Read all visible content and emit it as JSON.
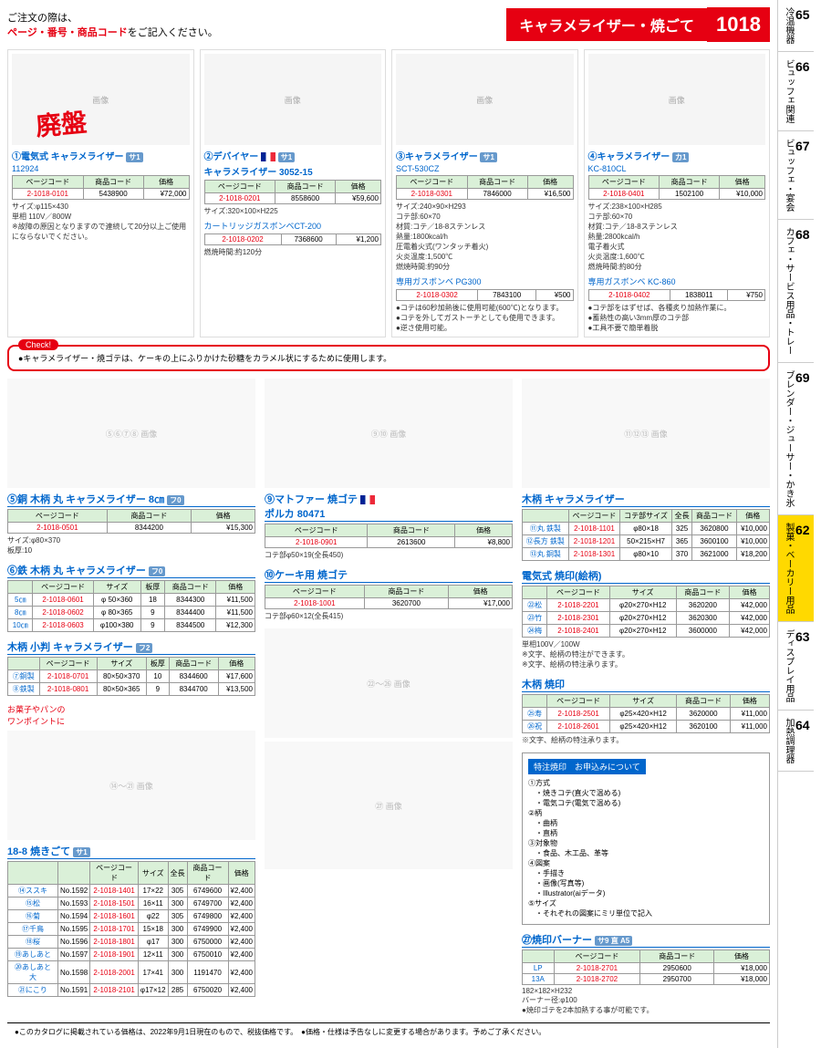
{
  "header": {
    "instruction1": "ご注文の際は、",
    "instruction2": "ページ・番号・商品コード",
    "instruction3": "をご記入ください。",
    "category": "キャラメライザー・焼ごて",
    "page": "1018"
  },
  "products_top": [
    {
      "num": "①",
      "name": "電気式 キャラメライザー",
      "model": "112924",
      "page_code": "2-1018-0101",
      "item_code": "5438900",
      "price": "¥72,000",
      "spec": "サイズ:φ115×430\n単相 110V／800W\n※故障の原因となりますので連続して20分以上ご使用にならないでください。",
      "discontinued": "廃盤",
      "badge": "サ1"
    },
    {
      "num": "②",
      "name": "デバイヤー",
      "name2": "キャラメライザー 3052-15",
      "page_code": "2-1018-0201",
      "item_code": "8558600",
      "price": "¥59,600",
      "spec": "サイズ:320×100×H225",
      "extra_name": "カートリッジガスボンベCT-200",
      "extra_page_code": "2-1018-0202",
      "extra_item_code": "7368600",
      "extra_price": "¥1,200",
      "extra_spec": "燃焼時間:約120分",
      "flag": true,
      "badge": "サ1"
    },
    {
      "num": "③",
      "name": "キャラメライザー",
      "model": "SCT-530CZ",
      "page_code": "2-1018-0301",
      "item_code": "7846000",
      "price": "¥16,500",
      "spec": "サイズ:240×90×H293\nコテ部:60×70\n材質:コテ／18-8ステンレス\n熱量:1800kcal/h\n圧電着火式(ワンタッチ着火)\n火炎温度:1,500℃\n燃焼時間:約90分",
      "extra_name": "専用ガスボンベ PG300",
      "extra_page_code": "2-1018-0302",
      "extra_item_code": "7843100",
      "extra_price": "¥500",
      "extra_spec": "●コテは60秒加熱後に使用可能(600℃)となります。\n●コテを外してガストーチとしても使用できます。\n●逆さ使用可能。",
      "badge": "サ1"
    },
    {
      "num": "④",
      "name": "キャラメライザー",
      "model": "KC-810CL",
      "page_code": "2-1018-0401",
      "item_code": "1502100",
      "price": "¥10,000",
      "spec": "サイズ:238×100×H285\nコテ部:60×70\n材質:コテ／18-8ステンレス\n熱量:2800kcal/h\n電子着火式\n火炎温度:1,600℃\n燃焼時間:約80分",
      "extra_name": "専用ガスボンベ KC-860",
      "extra_page_code": "2-1018-0402",
      "extra_item_code": "1838011",
      "extra_price": "¥750",
      "extra_spec": "●コテ部をはずせば、各種炙り加熱作業に。\n●蓄熱性の高い3mm厚のコテ部\n●工具不要で簡単着脱",
      "badge": "カ1"
    }
  ],
  "check_note": "●キャラメライザー・焼ゴテは、ケーキの上にふりかけた砂糖をカラメル状にするために使用します。",
  "check_label": "Check!",
  "section5": {
    "title": "⑤銅 木柄 丸 キャラメライザー 8㎝",
    "page_code": "2-1018-0501",
    "item_code": "8344200",
    "price": "¥15,300",
    "spec": "サイズ:φ80×370\n板厚:10",
    "badge": "フ0"
  },
  "section6": {
    "title": "⑥鉄 木柄 丸 キャラメライザー",
    "headers": [
      "",
      "ページコード",
      "サイズ",
      "板厚",
      "商品コード",
      "価格"
    ],
    "rows": [
      [
        "5㎝",
        "2-1018-0601",
        "φ 50×360",
        "18",
        "8344300",
        "¥11,500"
      ],
      [
        "8㎝",
        "2-1018-0602",
        "φ 80×365",
        "9",
        "8344400",
        "¥11,500"
      ],
      [
        "10㎝",
        "2-1018-0603",
        "φ100×380",
        "9",
        "8344500",
        "¥12,300"
      ]
    ],
    "badge": "フ0"
  },
  "section78": {
    "title": "木柄 小判 キャラメライザー",
    "headers": [
      "",
      "ページコード",
      "サイズ",
      "板厚",
      "商品コード",
      "価格"
    ],
    "rows": [
      [
        "⑦銅製",
        "2-1018-0701",
        "80×50×370",
        "10",
        "8344600",
        "¥17,600"
      ],
      [
        "⑧鉄製",
        "2-1018-0801",
        "80×50×365",
        "9",
        "8344700",
        "¥13,500"
      ]
    ],
    "badge": "フ2"
  },
  "section9": {
    "title": "⑨マトファー 焼ゴテ",
    "subtitle": "ポルカ 80471",
    "page_code": "2-1018-0901",
    "item_code": "2613600",
    "price": "¥8,800",
    "spec": "コテ部φ50×19(全長450)",
    "flag": true
  },
  "section10": {
    "title": "⑩ケーキ用 焼ゴテ",
    "page_code": "2-1018-1001",
    "item_code": "3620700",
    "price": "¥17,000",
    "spec": "コテ部φ60×12(全長415)"
  },
  "section_wood": {
    "title": "木柄 キャラメライザー",
    "headers": [
      "",
      "ページコード",
      "コテ部サイズ",
      "全長",
      "商品コード",
      "価格"
    ],
    "rows": [
      [
        "⑪丸 鉄製",
        "2-1018-1101",
        "φ80×18",
        "325",
        "3620800",
        "¥10,000"
      ],
      [
        "⑫長方 鉄製",
        "2-1018-1201",
        "50×215×H7",
        "365",
        "3600100",
        "¥10,000"
      ],
      [
        "⑬丸 銅製",
        "2-1018-1301",
        "φ80×10",
        "370",
        "3621000",
        "¥18,200"
      ]
    ]
  },
  "confection_note": "お菓子やパンの\nワンポイントに",
  "section_elec_yakiin": {
    "title": "電気式 焼印(絵柄)",
    "headers": [
      "",
      "ページコード",
      "サイズ",
      "商品コード",
      "価格"
    ],
    "rows": [
      [
        "㉒松",
        "2-1018-2201",
        "φ20×270×H12",
        "3620200",
        "¥42,000"
      ],
      [
        "㉓竹",
        "2-1018-2301",
        "φ20×270×H12",
        "3620300",
        "¥42,000"
      ],
      [
        "㉔梅",
        "2-1018-2401",
        "φ20×270×H12",
        "3600000",
        "¥42,000"
      ]
    ],
    "spec": "単相100V／100W\n※文字、絵柄の特注ができます。\n※文字、絵柄の特注承ります。"
  },
  "section_wood_yakiin": {
    "title": "木柄 焼印",
    "headers": [
      "",
      "ページコード",
      "サイズ",
      "商品コード",
      "価格"
    ],
    "rows": [
      [
        "㉕寿",
        "2-1018-2501",
        "φ25×420×H12",
        "3620000",
        "¥11,000"
      ],
      [
        "㉖祝",
        "2-1018-2601",
        "φ25×420×H12",
        "3620100",
        "¥11,000"
      ]
    ],
    "spec": "※文字、絵柄の特注承ります。"
  },
  "custom_info": {
    "title": "特注焼印　お申込みについて",
    "items": "①方式\n　・焼きコテ(直火で温める)\n　・電気コテ(電気で温める)\n②柄\n　・曲柄\n　・直柄\n③対象物\n　・食品、木工品、革等\n④図案\n　・手描き\n　・画像(写真等)\n　・Illustrator(aiデータ)\n⑤サイズ\n　・それぞれの図案にミリ単位で記入"
  },
  "section188": {
    "title": "18-8 焼きごて",
    "headers": [
      "",
      "",
      "ページコード",
      "サイズ",
      "全長",
      "商品コード",
      "価格"
    ],
    "rows": [
      [
        "⑭ススキ",
        "No.1592",
        "2-1018-1401",
        "17×22",
        "305",
        "6749600",
        "¥2,400"
      ],
      [
        "⑮松",
        "No.1593",
        "2-1018-1501",
        "16×11",
        "300",
        "6749700",
        "¥2,400"
      ],
      [
        "⑯菊",
        "No.1594",
        "2-1018-1601",
        "φ22",
        "305",
        "6749800",
        "¥2,400"
      ],
      [
        "⑰千鳥",
        "No.1595",
        "2-1018-1701",
        "15×18",
        "300",
        "6749900",
        "¥2,400"
      ],
      [
        "⑱桜",
        "No.1596",
        "2-1018-1801",
        "φ17",
        "300",
        "6750000",
        "¥2,400"
      ],
      [
        "⑲あしあと",
        "No.1597",
        "2-1018-1901",
        "12×11",
        "300",
        "6750010",
        "¥2,400"
      ],
      [
        "⑳あしあと 大",
        "No.1598",
        "2-1018-2001",
        "17×41",
        "300",
        "1191470",
        "¥2,400"
      ],
      [
        "㉑にこり",
        "No.1591",
        "2-1018-2101",
        "φ17×12",
        "285",
        "6750020",
        "¥2,400"
      ]
    ],
    "badge": "サ1"
  },
  "section27": {
    "title": "㉗焼印バーナー",
    "headers": [
      "",
      "ページコード",
      "商品コード",
      "価格"
    ],
    "rows": [
      [
        "LP",
        "2-1018-2701",
        "2950600",
        "¥18,000"
      ],
      [
        "13A",
        "2-1018-2702",
        "2950700",
        "¥18,000"
      ]
    ],
    "spec": "182×182×H232\nバーナー径:φ100\n●焼印ゴテを2本加熱する事が可能です。",
    "badges": "サ9 直 A5"
  },
  "sidebar": [
    {
      "num": "65",
      "label": "冷温機器"
    },
    {
      "num": "66",
      "label": "ビュッフェ関連"
    },
    {
      "num": "67",
      "label": "ビュッフェ・宴会"
    },
    {
      "num": "68",
      "label": "カフェ・サービス用品・トレー"
    },
    {
      "num": "69",
      "label": "ブレンダー・ジューサー・かき氷"
    },
    {
      "num": "62",
      "label": "製菓・ベーカリー用品",
      "active": true
    },
    {
      "num": "63",
      "label": "ディスプレイ用品"
    },
    {
      "num": "64",
      "label": "加熱調理器"
    }
  ],
  "footer": "●このカタログに掲載されている価格は、2022年9月1日現在のもので、税抜価格です。　●価格・仕様は予告なしに変更する場合があります。予めご了承ください。",
  "table_headers": {
    "page_code": "ページコード",
    "item_code": "商品コード",
    "price": "価格"
  }
}
